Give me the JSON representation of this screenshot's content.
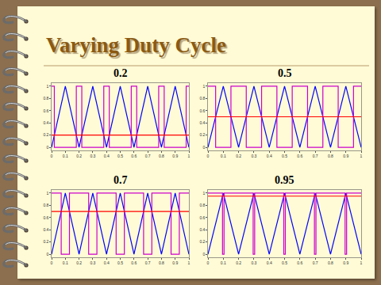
{
  "title": "Varying Duty Cycle",
  "chart_data": [
    {
      "type": "line",
      "title": "0.2",
      "xlim": [
        0,
        1
      ],
      "xticks": [
        0,
        0.1,
        0.2,
        0.3,
        0.4,
        0.5,
        0.6,
        0.7,
        0.8,
        0.9,
        1
      ],
      "ylim": [
        -0.05,
        1.05
      ],
      "yticks": [
        0,
        0.2,
        0.4,
        0.6,
        0.8,
        1
      ],
      "grid": false,
      "series": [
        {
          "color": "#0000ff",
          "x": [
            0,
            0.1,
            0.2,
            0.3,
            0.4,
            0.5,
            0.6,
            0.7,
            0.8,
            0.9,
            1
          ],
          "values": [
            0,
            1,
            0,
            1,
            0,
            1,
            0,
            1,
            0,
            1,
            0
          ]
        },
        {
          "color": "#cc00cc",
          "line_style": "step",
          "x": [
            0,
            0.02,
            0.18,
            0.22,
            0.38,
            0.42,
            0.58,
            0.62,
            0.78,
            0.82,
            0.98,
            1
          ],
          "values": [
            1,
            0,
            1,
            0,
            1,
            0,
            1,
            0,
            1,
            0,
            1,
            1
          ]
        },
        {
          "color": "#ff0000",
          "x": [
            0,
            1
          ],
          "values": [
            0.2,
            0.2
          ]
        }
      ]
    },
    {
      "type": "line",
      "title": "0.5",
      "xlim": [
        0,
        1
      ],
      "xticks": [
        0,
        0.1,
        0.2,
        0.3,
        0.4,
        0.5,
        0.6,
        0.7,
        0.8,
        0.9,
        1
      ],
      "ylim": [
        -0.05,
        1.05
      ],
      "yticks": [
        0,
        0.2,
        0.4,
        0.6,
        0.8,
        1
      ],
      "grid": false,
      "series": [
        {
          "color": "#0000ff",
          "x": [
            0,
            0.1,
            0.2,
            0.3,
            0.4,
            0.5,
            0.6,
            0.7,
            0.8,
            0.9,
            1
          ],
          "values": [
            0,
            1,
            0,
            1,
            0,
            1,
            0,
            1,
            0,
            1,
            0
          ]
        },
        {
          "color": "#cc00cc",
          "line_style": "step",
          "x": [
            0,
            0.05,
            0.15,
            0.25,
            0.35,
            0.45,
            0.55,
            0.65,
            0.75,
            0.85,
            0.95,
            1
          ],
          "values": [
            1,
            0,
            1,
            0,
            1,
            0,
            1,
            0,
            1,
            0,
            1,
            1
          ]
        },
        {
          "color": "#ff0000",
          "x": [
            0,
            1
          ],
          "values": [
            0.5,
            0.5
          ]
        }
      ]
    },
    {
      "type": "line",
      "title": "0.7",
      "xlim": [
        0,
        1
      ],
      "xticks": [
        0,
        0.1,
        0.2,
        0.3,
        0.4,
        0.5,
        0.6,
        0.7,
        0.8,
        0.9,
        1
      ],
      "ylim": [
        -0.05,
        1.05
      ],
      "yticks": [
        0,
        0.2,
        0.4,
        0.6,
        0.8,
        1
      ],
      "grid": false,
      "series": [
        {
          "color": "#0000ff",
          "x": [
            0,
            0.1,
            0.2,
            0.3,
            0.4,
            0.5,
            0.6,
            0.7,
            0.8,
            0.9,
            1
          ],
          "values": [
            0,
            1,
            0,
            1,
            0,
            1,
            0,
            1,
            0,
            1,
            0
          ]
        },
        {
          "color": "#cc00cc",
          "line_style": "step",
          "x": [
            0,
            0.07,
            0.13,
            0.27,
            0.33,
            0.47,
            0.53,
            0.67,
            0.73,
            0.87,
            0.93,
            1
          ],
          "values": [
            1,
            0,
            1,
            0,
            1,
            0,
            1,
            0,
            1,
            0,
            1,
            1
          ]
        },
        {
          "color": "#ff0000",
          "x": [
            0,
            1
          ],
          "values": [
            0.7,
            0.7
          ]
        }
      ]
    },
    {
      "type": "line",
      "title": "0.95",
      "xlim": [
        0,
        1
      ],
      "xticks": [
        0,
        0.1,
        0.2,
        0.3,
        0.4,
        0.5,
        0.6,
        0.7,
        0.8,
        0.9,
        1
      ],
      "ylim": [
        -0.05,
        1.05
      ],
      "yticks": [
        0,
        0.2,
        0.4,
        0.6,
        0.8,
        1
      ],
      "grid": false,
      "series": [
        {
          "color": "#0000ff",
          "x": [
            0,
            0.1,
            0.2,
            0.3,
            0.4,
            0.5,
            0.6,
            0.7,
            0.8,
            0.9,
            1
          ],
          "values": [
            0,
            1,
            0,
            1,
            0,
            1,
            0,
            1,
            0,
            1,
            0
          ]
        },
        {
          "color": "#cc00cc",
          "line_style": "step",
          "x": [
            0,
            0.095,
            0.105,
            0.295,
            0.305,
            0.495,
            0.505,
            0.695,
            0.705,
            0.895,
            0.905,
            1
          ],
          "values": [
            1,
            0,
            1,
            0,
            1,
            0,
            1,
            0,
            1,
            0,
            1,
            1
          ]
        },
        {
          "color": "#ff0000",
          "x": [
            0,
            1
          ],
          "values": [
            0.95,
            0.95
          ]
        }
      ]
    }
  ]
}
